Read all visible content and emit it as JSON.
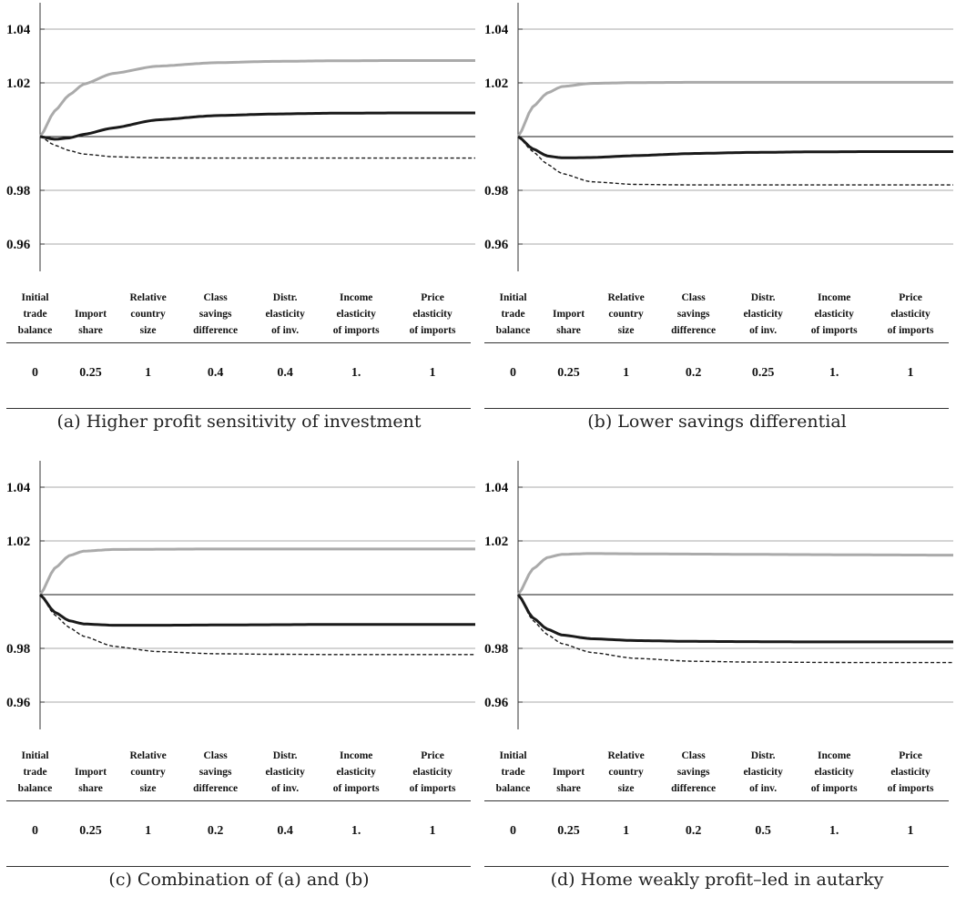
{
  "chart_data": [
    {
      "type": "line",
      "caption": "(a) Higher profit sensitivity of investment",
      "y_ticks": [
        0.96,
        0.98,
        1.02,
        1.04
      ],
      "y_tick_labels": [
        "0.96",
        "0.98",
        "1.02",
        "1.04"
      ],
      "ylim": [
        0.95,
        1.05
      ],
      "grid": true,
      "series": [
        {
          "style": "gray",
          "color": "#aaaaaa",
          "x": [
            0,
            1,
            2,
            3,
            5,
            8,
            12,
            16,
            20,
            24,
            30
          ],
          "values": [
            1.0,
            1.0095,
            1.0155,
            1.0195,
            1.0235,
            1.0262,
            1.0275,
            1.028,
            1.0282,
            1.0283,
            1.0283
          ]
        },
        {
          "style": "black-thick",
          "color": "#1a1a1a",
          "x": [
            0,
            1,
            2,
            3,
            5,
            8,
            12,
            16,
            20,
            24,
            30
          ],
          "values": [
            1.0,
            0.999,
            0.9995,
            1.0008,
            1.0032,
            1.0062,
            1.0078,
            1.0084,
            1.0087,
            1.0088,
            1.0088
          ]
        },
        {
          "style": "dashed",
          "color": "#1a1a1a",
          "x": [
            0,
            1,
            2,
            3,
            5,
            8,
            12,
            16,
            20,
            24,
            30
          ],
          "values": [
            1.0,
            0.9968,
            0.9948,
            0.9935,
            0.9925,
            0.9921,
            0.992,
            0.992,
            0.992,
            0.992,
            0.992
          ]
        },
        {
          "style": "reference",
          "color": "#1a1a1a",
          "x": [
            0,
            30
          ],
          "values": [
            1.0,
            1.0
          ]
        }
      ]
    },
    {
      "type": "line",
      "caption": "(b) Lower savings differential",
      "y_ticks": [
        0.96,
        0.98,
        1.02,
        1.04
      ],
      "y_tick_labels": [
        "0.96",
        "0.98",
        "1.02",
        "1.04"
      ],
      "ylim": [
        0.95,
        1.05
      ],
      "grid": true,
      "series": [
        {
          "style": "gray",
          "color": "#aaaaaa",
          "x": [
            0,
            1,
            2,
            3,
            5,
            8,
            12,
            16,
            20,
            24,
            30
          ],
          "values": [
            1.0,
            1.011,
            1.0162,
            1.0186,
            1.0198,
            1.0201,
            1.0202,
            1.0202,
            1.0202,
            1.0202,
            1.0202
          ]
        },
        {
          "style": "black-thick",
          "color": "#1a1a1a",
          "x": [
            0,
            1,
            2,
            3,
            5,
            8,
            12,
            16,
            20,
            24,
            30
          ],
          "values": [
            1.0,
            0.9955,
            0.9928,
            0.9921,
            0.9922,
            0.9929,
            0.9937,
            0.9941,
            0.9943,
            0.9944,
            0.9944
          ]
        },
        {
          "style": "dashed",
          "color": "#1a1a1a",
          "x": [
            0,
            1,
            2,
            3,
            5,
            8,
            12,
            16,
            20,
            24,
            30
          ],
          "values": [
            1.0,
            0.9945,
            0.9898,
            0.9863,
            0.9832,
            0.9822,
            0.982,
            0.982,
            0.982,
            0.982,
            0.982
          ]
        },
        {
          "style": "reference",
          "color": "#1a1a1a",
          "x": [
            0,
            30
          ],
          "values": [
            1.0,
            1.0
          ]
        }
      ]
    },
    {
      "type": "line",
      "caption": "(c) Combination of (a) and (b)",
      "y_ticks": [
        0.96,
        0.98,
        1.02,
        1.04
      ],
      "y_tick_labels": [
        "0.96",
        "0.98",
        "1.02",
        "1.04"
      ],
      "ylim": [
        0.95,
        1.05
      ],
      "grid": true,
      "series": [
        {
          "style": "gray",
          "color": "#aaaaaa",
          "x": [
            0,
            1,
            2,
            3,
            5,
            8,
            12,
            16,
            20,
            24,
            30
          ],
          "values": [
            1.0,
            1.0098,
            1.0145,
            1.0162,
            1.0168,
            1.0169,
            1.017,
            1.017,
            1.017,
            1.017,
            1.017
          ]
        },
        {
          "style": "black-thick",
          "color": "#1a1a1a",
          "x": [
            0,
            1,
            2,
            3,
            5,
            8,
            12,
            16,
            20,
            24,
            30
          ],
          "values": [
            1.0,
            0.9935,
            0.9903,
            0.9891,
            0.9886,
            0.9886,
            0.9887,
            0.9888,
            0.9889,
            0.9889,
            0.9889
          ]
        },
        {
          "style": "dashed",
          "color": "#1a1a1a",
          "x": [
            0,
            1,
            2,
            3,
            5,
            8,
            12,
            16,
            20,
            24,
            30
          ],
          "values": [
            1.0,
            0.9925,
            0.9878,
            0.9845,
            0.9808,
            0.9788,
            0.978,
            0.9778,
            0.9777,
            0.9777,
            0.9777
          ]
        },
        {
          "style": "reference",
          "color": "#1a1a1a",
          "x": [
            0,
            30
          ],
          "values": [
            1.0,
            1.0
          ]
        }
      ]
    },
    {
      "type": "line",
      "caption": "(d) Home weakly profit–led in autarky",
      "y_ticks": [
        0.96,
        0.98,
        1.02,
        1.04
      ],
      "y_tick_labels": [
        "0.96",
        "0.98",
        "1.02",
        "1.04"
      ],
      "ylim": [
        0.95,
        1.05
      ],
      "grid": true,
      "series": [
        {
          "style": "gray",
          "color": "#aaaaaa",
          "x": [
            0,
            1,
            2,
            3,
            5,
            8,
            12,
            16,
            20,
            24,
            30
          ],
          "values": [
            1.0,
            1.0095,
            1.0138,
            1.015,
            1.0153,
            1.0152,
            1.0151,
            1.015,
            1.0149,
            1.0148,
            1.0147
          ]
        },
        {
          "style": "black-thick",
          "color": "#1a1a1a",
          "x": [
            0,
            1,
            2,
            3,
            5,
            8,
            12,
            16,
            20,
            24,
            30
          ],
          "values": [
            1.0,
            0.9915,
            0.9872,
            0.985,
            0.9836,
            0.9829,
            0.9826,
            0.9825,
            0.9824,
            0.9824,
            0.9824
          ]
        },
        {
          "style": "dashed",
          "color": "#1a1a1a",
          "x": [
            0,
            1,
            2,
            3,
            5,
            8,
            12,
            16,
            20,
            24,
            30
          ],
          "values": [
            1.0,
            0.9905,
            0.9852,
            0.9818,
            0.9785,
            0.9763,
            0.9752,
            0.9749,
            0.9748,
            0.9747,
            0.9747
          ]
        },
        {
          "style": "reference",
          "color": "#1a1a1a",
          "x": [
            0,
            30
          ],
          "values": [
            1.0,
            1.0
          ]
        }
      ]
    }
  ],
  "params_headers": [
    [
      "Initial",
      "trade",
      "balance"
    ],
    [
      "Import",
      "share"
    ],
    [
      "Relative",
      "country",
      "size"
    ],
    [
      "Class",
      "savings",
      "difference"
    ],
    [
      "Distr.",
      "elasticity",
      "of inv."
    ],
    [
      "Income",
      "elasticity",
      "of imports"
    ],
    [
      "Price",
      "elasticity",
      "of imports"
    ]
  ],
  "params_values": [
    [
      "0",
      "0.25",
      "1",
      "0.4",
      "0.4",
      "1.",
      "1"
    ],
    [
      "0",
      "0.25",
      "1",
      "0.2",
      "0.25",
      "1.",
      "1"
    ],
    [
      "0",
      "0.25",
      "1",
      "0.2",
      "0.4",
      "1.",
      "1"
    ],
    [
      "0",
      "0.25",
      "1",
      "0.2",
      "0.5",
      "1.",
      "1"
    ]
  ]
}
